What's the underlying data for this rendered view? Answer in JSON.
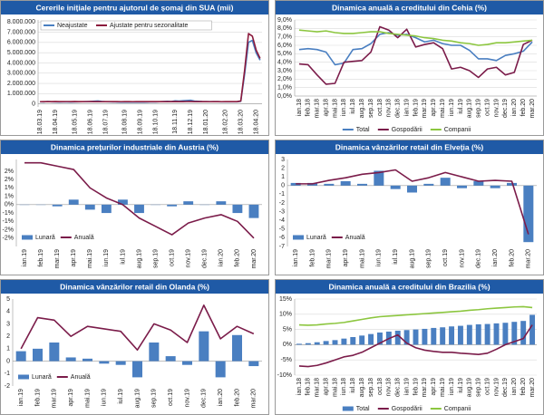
{
  "chart_data": [
    {
      "type": "line",
      "title": "Cererile inițiale pentru ajutorul de șomaj din SUA (mii)",
      "legend": "top-left",
      "grid": true,
      "categories": [
        "18.03.19",
        null,
        null,
        null,
        "18.04.19",
        null,
        null,
        null,
        null,
        "18.05.19",
        null,
        null,
        null,
        "18.06.19",
        null,
        null,
        null,
        "18.07.19",
        null,
        null,
        null,
        null,
        "18.08.19",
        null,
        null,
        null,
        "18.09.19",
        null,
        null,
        null,
        "18.10.19",
        null,
        null,
        null,
        null,
        "18.11.19",
        null,
        null,
        null,
        "18.12.19",
        null,
        null,
        null,
        "18.01.20",
        null,
        null,
        null,
        null,
        "18.02.20",
        null,
        null,
        null,
        "18.03.20",
        null,
        null,
        null,
        "18.04.20",
        null
      ],
      "ylim": [
        -300000,
        8200000
      ],
      "yticks": [
        0,
        {
          "value": 1000000,
          "label": "1.000.000"
        },
        {
          "value": 2000000,
          "label": "2.000.000"
        },
        {
          "value": 3000000,
          "label": "3.000.000"
        },
        {
          "value": 4000000,
          "label": "4.000.000"
        },
        {
          "value": 5000000,
          "label": "5.000.000"
        },
        {
          "value": 6000000,
          "label": "6.000.000"
        },
        {
          "value": 7000000,
          "label": "7.000.000"
        },
        {
          "value": 8000000,
          "label": "8.000.000"
        }
      ],
      "series": [
        {
          "name": "Neajustate",
          "type": "line",
          "color": "#4a7fc1",
          "values": [
            200000,
            190000,
            230000,
            200000,
            190000,
            180000,
            190000,
            195000,
            185000,
            190000,
            205000,
            210000,
            215000,
            225000,
            260000,
            280000,
            235000,
            210000,
            200000,
            190000,
            185000,
            175000,
            175000,
            170000,
            165000,
            170000,
            180000,
            175000,
            180000,
            200000,
            195000,
            210000,
            230000,
            250000,
            230000,
            290000,
            270000,
            300000,
            330000,
            350000,
            270000,
            250000,
            230000,
            220000,
            215000,
            215000,
            215000,
            205000,
            210000,
            200000,
            210000,
            205000,
            251000,
            2920000,
            6015000,
            6200000,
            4970000,
            4270000
          ]
        },
        {
          "name": "Ajustate pentru sezonalitate",
          "type": "line",
          "color": "#8b1a3c",
          "values": [
            210000,
            215000,
            220000,
            215000,
            225000,
            212000,
            218000,
            220000,
            215000,
            222000,
            218000,
            216000,
            220000,
            225000,
            215000,
            212000,
            210000,
            216000,
            220000,
            218000,
            215000,
            210000,
            212000,
            215000,
            210000,
            212000,
            215000,
            218000,
            214000,
            215000,
            218000,
            212000,
            220000,
            215000,
            218000,
            222000,
            215000,
            212000,
            220000,
            225000,
            218000,
            215000,
            212000,
            215000,
            210000,
            212000,
            215000,
            210000,
            212000,
            215000,
            218000,
            215000,
            282000,
            3307000,
            6867000,
            6615000,
            5237000,
            4442000
          ]
        }
      ]
    },
    {
      "type": "line",
      "title": "Dinamica anuală a creditului din Cehia (%)",
      "legend": "bottom",
      "grid": true,
      "categories": [
        "ian.18",
        "feb.18",
        "mar.18",
        "apr.18",
        "mai.18",
        "iun.18",
        "iul.18",
        "aug.18",
        "sep.18",
        "oct.18",
        "nov.18",
        "dec.18",
        "ian.19",
        "feb.19",
        "mar.19",
        "apr.19",
        "mai.19",
        "iun.19",
        "iul.19",
        "aug.19",
        "sep.19",
        "oct.19",
        "nov.19",
        "dec.19",
        "ian.20",
        "feb.20",
        "mar.20"
      ],
      "ylim": [
        0,
        9
      ],
      "yticks": [
        {
          "value": 0,
          "label": "0,0%"
        },
        {
          "value": 1,
          "label": "1,0%"
        },
        {
          "value": 2,
          "label": "2,0%"
        },
        {
          "value": 3,
          "label": "3,0%"
        },
        {
          "value": 4,
          "label": "4,0%"
        },
        {
          "value": 5,
          "label": "5,0%"
        },
        {
          "value": 6,
          "label": "6,0%"
        },
        {
          "value": 7,
          "label": "7,0%"
        },
        {
          "value": 8,
          "label": "8,0%"
        },
        {
          "value": 9,
          "label": "9,0%"
        }
      ],
      "series": [
        {
          "name": "Total",
          "type": "line",
          "color": "#4a7fc1",
          "values": [
            5.5,
            5.6,
            5.5,
            5.2,
            3.7,
            3.9,
            5.5,
            5.6,
            6.2,
            7.3,
            7.5,
            7.2,
            7.3,
            6.9,
            6.4,
            6.6,
            6.2,
            6.0,
            6.0,
            5.4,
            4.4,
            4.4,
            4.2,
            4.8,
            5.0,
            5.3,
            6.4
          ]
        },
        {
          "name": "Gospodării",
          "type": "line",
          "color": "#7b1c4a",
          "values": [
            3.8,
            3.7,
            2.5,
            1.4,
            1.5,
            4.0,
            4.1,
            4.2,
            5.2,
            8.2,
            7.8,
            6.9,
            7.9,
            5.8,
            6.1,
            6.3,
            5.6,
            3.2,
            3.4,
            3.0,
            2.2,
            3.2,
            3.4,
            2.5,
            2.8,
            6.1,
            6.6
          ]
        },
        {
          "name": "Companii",
          "type": "line",
          "color": "#8cc63f",
          "values": [
            7.8,
            7.7,
            7.6,
            7.7,
            7.5,
            7.4,
            7.4,
            7.5,
            7.6,
            7.6,
            7.4,
            7.3,
            7.2,
            7.1,
            6.9,
            6.8,
            6.6,
            6.5,
            6.3,
            6.2,
            6.0,
            6.1,
            6.3,
            6.3,
            6.4,
            6.5,
            6.6
          ]
        }
      ]
    },
    {
      "type": "bar",
      "title": "Dinamica prețurilor industriale din Austria (%)",
      "legend": "bottom-left",
      "grid": false,
      "categories": [
        "ian.19",
        "feb.19",
        "mar.19",
        "apr.19",
        "mai.19",
        "iun.19",
        "iul.19",
        "aug.19",
        "sep.19",
        "oct.19",
        "nov.19",
        "dec.19",
        "ian.20",
        "feb.20",
        "mar.20"
      ],
      "ylim": [
        -2.5,
        2.7
      ],
      "yticks": [
        {
          "value": 2,
          "label": "2%"
        },
        {
          "value": 1.5,
          "label": "2%"
        },
        {
          "value": 1,
          "label": "1%"
        },
        {
          "value": 0.5,
          "label": "1%"
        },
        {
          "value": 0,
          "label": "0%"
        },
        {
          "value": -0.5,
          "label": "-1%"
        },
        {
          "value": -1,
          "label": "-1%"
        },
        {
          "value": -1.5,
          "label": "-2%"
        },
        {
          "value": -2,
          "label": "-2%"
        }
      ],
      "series": [
        {
          "name": "Lunară",
          "type": "bar",
          "color": "#4a7fc1",
          "values": [
            0.0,
            0.0,
            -0.1,
            0.3,
            -0.3,
            -0.5,
            0.3,
            -0.5,
            0.0,
            -0.1,
            0.2,
            0.0,
            0.2,
            -0.5,
            -0.8
          ]
        },
        {
          "name": "Anuală",
          "type": "line",
          "color": "#7b1c4a",
          "values": [
            2.5,
            2.5,
            2.3,
            2.1,
            1.0,
            0.4,
            0.0,
            -0.8,
            -1.3,
            -1.8,
            -1.1,
            -0.8,
            -0.6,
            -1.0,
            -2.0
          ]
        }
      ]
    },
    {
      "type": "bar",
      "title": "Dinamica vânzărilor retail din Elveția (%)",
      "legend": "bottom-left",
      "grid": false,
      "categories": [
        "ian.19",
        "feb.19",
        "mar.19",
        "apr.19",
        "mai.19",
        "iun.19",
        "iul.19",
        "aug.19",
        "sep.19",
        "oct.19",
        "nov.19",
        "dec.19",
        "ian.20",
        "feb.20",
        "mar.20"
      ],
      "ylim": [
        -7,
        3
      ],
      "yticks": [
        3,
        2,
        1,
        0,
        -1,
        -2,
        -3,
        -4,
        -5,
        -6,
        -7
      ],
      "series": [
        {
          "name": "Lunară",
          "type": "bar",
          "color": "#4a7fc1",
          "values": [
            0.3,
            0.3,
            0.2,
            0.5,
            0.2,
            1.7,
            -0.4,
            -0.8,
            0.2,
            0.9,
            -0.3,
            0.5,
            -0.3,
            0.3,
            -6.5
          ]
        },
        {
          "name": "Anuală",
          "type": "line",
          "color": "#7b1c4a",
          "values": [
            0.2,
            0.2,
            0.6,
            0.9,
            1.3,
            1.5,
            1.8,
            0.5,
            0.9,
            1.5,
            1.0,
            0.5,
            0.6,
            0.5,
            -5.6
          ]
        }
      ]
    },
    {
      "type": "bar",
      "title": "Dinamica vânzărilor retail din Olanda (%)",
      "legend": "bottom-left",
      "grid": false,
      "categories": [
        "ian.19",
        "feb.19",
        "mar.19",
        "apr.19",
        "mai.19",
        "iun.19",
        "iul.19",
        "aug.19",
        "sep.19",
        "oct.19",
        "nov.19",
        "dec.19",
        "ian.20",
        "feb.20",
        "mar.20"
      ],
      "ylim": [
        -2,
        5
      ],
      "yticks": [
        5,
        4,
        3,
        2,
        1,
        0,
        -1,
        -2
      ],
      "series": [
        {
          "name": "Lunară",
          "type": "bar",
          "color": "#4a7fc1",
          "values": [
            0.8,
            1.0,
            1.5,
            0.3,
            0.2,
            -0.2,
            -0.3,
            -1.3,
            1.5,
            0.4,
            -0.3,
            2.4,
            -1.3,
            2.1,
            -0.4
          ]
        },
        {
          "name": "Anuală",
          "type": "line",
          "color": "#7b1c4a",
          "values": [
            1.0,
            3.5,
            3.3,
            2.0,
            2.8,
            2.6,
            2.4,
            0.9,
            3.0,
            2.5,
            1.5,
            4.5,
            1.8,
            2.8,
            2.2
          ]
        }
      ]
    },
    {
      "type": "bar",
      "title": "Dinamica anuală a creditului din Brazilia (%)",
      "legend": "bottom",
      "grid": true,
      "categories": [
        "ian.18",
        "feb.18",
        "mar.18",
        "apr.18",
        "mai.18",
        "iun.18",
        "iul.18",
        "aug.18",
        "sep.18",
        "oct.18",
        "nov.18",
        "dec.18",
        "ian.19",
        "feb.19",
        "mar.19",
        "apr.19",
        "mai.19",
        "iun.19",
        "iul.19",
        "aug.19",
        "sep.19",
        "oct.19",
        "nov.19",
        "dec.19",
        "ian.20",
        "feb.20",
        "mar.20"
      ],
      "ylim": [
        -10,
        15
      ],
      "yticks": [
        {
          "value": 15,
          "label": "15%"
        },
        {
          "value": 10,
          "label": "10%"
        },
        {
          "value": 5,
          "label": "5%"
        },
        {
          "value": 0,
          "label": "0%"
        },
        {
          "value": -5,
          "label": "-5%"
        },
        {
          "value": -10,
          "label": "-10%"
        }
      ],
      "series": [
        {
          "name": "Total",
          "type": "bar",
          "color": "#4a7fc1",
          "values": [
            0.3,
            0.5,
            0.8,
            1.2,
            1.5,
            2.0,
            2.5,
            3.0,
            3.5,
            4.0,
            4.3,
            4.6,
            4.8,
            5.0,
            5.2,
            5.5,
            5.7,
            6.0,
            6.2,
            6.5,
            6.7,
            6.8,
            7.0,
            7.2,
            7.5,
            7.8,
            9.8
          ]
        },
        {
          "name": "Gospodării",
          "type": "line",
          "color": "#7b1c4a",
          "values": [
            -7,
            -7.2,
            -6.8,
            -6,
            -5,
            -4,
            -3.5,
            -2.5,
            -1,
            0.5,
            2,
            3.2,
            0.5,
            -1,
            -1.8,
            -2.2,
            -2.5,
            -2.5,
            -2.8,
            -3,
            -3.2,
            -2.8,
            -1.5,
            0,
            1,
            2,
            6.5
          ]
        },
        {
          "name": "Companii",
          "type": "line",
          "color": "#8cc63f",
          "values": [
            6.5,
            6.4,
            6.5,
            6.8,
            7.0,
            7.3,
            7.8,
            8.3,
            8.8,
            9.2,
            9.4,
            9.6,
            9.8,
            10.0,
            10.2,
            10.4,
            10.6,
            10.8,
            11.0,
            11.3,
            11.5,
            11.8,
            12.0,
            12.2,
            12.4,
            12.5,
            12.2
          ]
        }
      ]
    }
  ]
}
